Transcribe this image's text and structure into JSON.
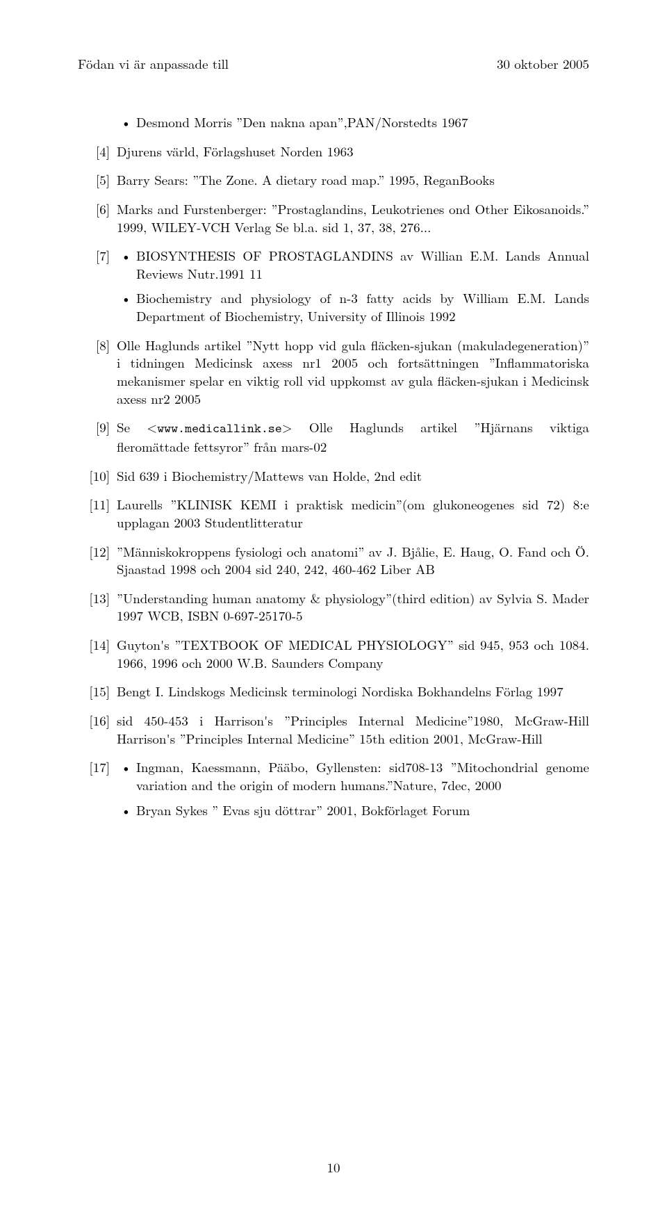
{
  "header": {
    "left": "Födan vi är anpassade till",
    "right": "30 oktober 2005"
  },
  "refs": [
    {
      "n": "",
      "bullets": [
        "Desmond Morris ”Den nakna apan”,PAN/Norstedts 1967"
      ]
    },
    {
      "n": "[4]",
      "text": "Djurens värld, Förlagshuset Norden 1963"
    },
    {
      "n": "[5]",
      "text": "Barry Sears: ”The Zone. A dietary road map.” 1995, ReganBooks"
    },
    {
      "n": "[6]",
      "text": "Marks and Furstenberger: ”Prostaglandins, Leukotrienes ond Other Eikosanoids.” 1999, WILEY-VCH Verlag Se bl.a. sid 1, 37, 38, 276..."
    },
    {
      "n": "[7]",
      "bullets": [
        "BIOSYNTHESIS OF PROSTAGLANDINS av Willian E.M. Lands Annual Reviews Nutr.1991 11",
        "Biochemistry and physiology of n-3 fatty acids by William E.M. Lands Department of Biochemistry, University of Illinois 1992"
      ]
    },
    {
      "n": "[8]",
      "text": "Olle Haglunds artikel ”Nytt hopp vid gula fläcken-sjukan (makuladegeneration)” i tidningen Medicinsk axess nr1 2005 och fortsättningen ”Inflammatoriska mekanismer spelar en viktig roll vid uppkomst av gula fläcken-sjukan i Medicinsk axess nr2 2005"
    },
    {
      "n": "[9]",
      "pre": "Se <",
      "tt": "www.medicallink.se",
      "post": "> Olle Haglunds artikel ”Hjärnans viktiga fleromättade fettsyror” från mars-02"
    },
    {
      "n": "[10]",
      "text": "Sid 639 i Biochemistry/Mattews van Holde, 2nd edit"
    },
    {
      "n": "[11]",
      "text": "Laurells ”KLINISK KEMI i praktisk medicin”(om glukoneogenes sid 72) 8:e upplagan 2003 Studentlitteratur"
    },
    {
      "n": "[12]",
      "text": "”Människokroppens fysiologi och anatomi” av J. Bjålie, E. Haug, O. Fand och Ö. Sjaastad 1998 och 2004 sid 240, 242, 460-462 Liber AB"
    },
    {
      "n": "[13]",
      "text": "”Understanding human anatomy & physiology”(third edition) av Sylvia S. Mader 1997 WCB, ISBN 0-697-25170-5"
    },
    {
      "n": "[14]",
      "text": "Guyton's ”TEXTBOOK OF MEDICAL PHYSIOLOGY” sid 945, 953 och 1084. 1966, 1996 och 2000 W.B. Saunders Company"
    },
    {
      "n": "[15]",
      "text": "Bengt I. Lindskogs Medicinsk terminologi Nordiska Bokhandelns Förlag 1997"
    },
    {
      "n": "[16]",
      "text": "sid 450-453 i Harrison's ”Principles Internal Medicine”1980, McGraw-Hill Harrison's ”Principles Internal Medicine” 15th edition 2001, McGraw-Hill"
    },
    {
      "n": "[17]",
      "bullets": [
        "Ingman, Kaessmann, Pääbo, Gyllensten: sid708-13 ”Mitochondrial genome variation and the origin of modern humans.”Nature, 7dec, 2000",
        "Bryan Sykes ” Evas sju döttrar” 2001, Bokförlaget Forum"
      ]
    }
  ],
  "page_number": "10"
}
